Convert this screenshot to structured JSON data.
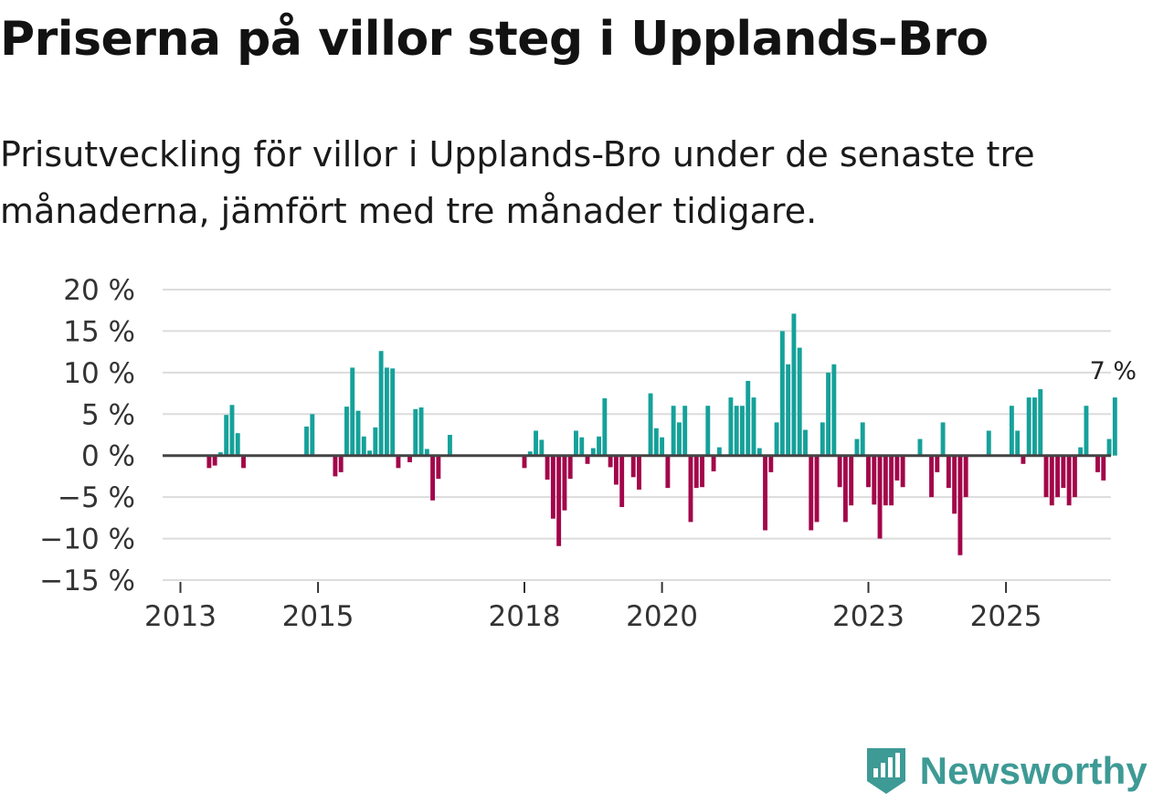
{
  "header": {
    "title": "Priserna på villor steg i Upplands-Bro",
    "subtitle": "Prisutveckling för villor i Upplands-Bro under de senaste tre månaderna, jämfört med tre månader tidigare."
  },
  "brand": {
    "name": "Newsworthy",
    "icon": "newsworthy-logo-icon",
    "color": "#3e9a95"
  },
  "colors": {
    "positive": "#15a19a",
    "negative": "#a3064a",
    "grid": "#dcdcdc",
    "zero": "#444444"
  },
  "chart_data": {
    "type": "bar",
    "title": "Priserna på villor steg i Upplands-Bro",
    "xlabel": "",
    "ylabel": "",
    "ylim": [
      -15,
      20
    ],
    "yticks": [
      20,
      15,
      10,
      5,
      0,
      -5,
      -10,
      -15
    ],
    "ytick_labels": [
      "20 %",
      "15 %",
      "10 %",
      "5 %",
      "0 %",
      "−5 %",
      "−10 %",
      "−15 %"
    ],
    "xticks": [
      2013,
      2015,
      2018,
      2020,
      2023,
      2025
    ],
    "xtick_labels": [
      "2013",
      "2015",
      "2018",
      "2020",
      "2023",
      "2025"
    ],
    "x_start": 2013.0,
    "step_months": 1,
    "values": [
      null,
      null,
      null,
      null,
      null,
      -1.5,
      -1.2,
      0.4,
      4.9,
      6.1,
      2.7,
      -1.5,
      null,
      null,
      null,
      null,
      null,
      null,
      null,
      null,
      null,
      null,
      3.5,
      5.0,
      null,
      null,
      null,
      -2.5,
      -2.0,
      5.9,
      10.6,
      5.4,
      2.3,
      0.6,
      3.4,
      12.6,
      10.6,
      10.5,
      -1.5,
      null,
      -0.8,
      5.6,
      5.8,
      0.8,
      -5.4,
      -2.8,
      null,
      2.5,
      null,
      null,
      null,
      null,
      null,
      null,
      null,
      null,
      null,
      null,
      null,
      null,
      -1.5,
      0.5,
      3.0,
      1.9,
      -2.9,
      -7.6,
      -10.9,
      -6.6,
      -2.8,
      3.0,
      2.2,
      -1.0,
      0.9,
      2.3,
      6.9,
      -1.4,
      -3.5,
      -6.2,
      null,
      -2.6,
      -4.1,
      null,
      7.5,
      3.3,
      2.2,
      -3.9,
      6.0,
      4.0,
      6.0,
      -8.0,
      -3.9,
      -3.8,
      6.0,
      -1.9,
      1.0,
      null,
      7.0,
      6.0,
      6.0,
      9.0,
      7.0,
      0.9,
      -9.0,
      -2.0,
      4.0,
      15.0,
      11.0,
      17.1,
      13.0,
      3.1,
      -9.0,
      -8.0,
      4.0,
      10.0,
      11.0,
      -3.8,
      -8.0,
      -6.0,
      2.0,
      4.0,
      -3.8,
      -5.9,
      -10.0,
      -6.0,
      -6.0,
      -3.0,
      -3.8,
      null,
      null,
      2.0,
      null,
      -5.0,
      -2.0,
      4.0,
      -3.9,
      -7.0,
      -12.0,
      -5.0,
      null,
      null,
      null,
      3.0,
      null,
      null,
      null,
      6.0,
      3.0,
      -1.0,
      7.0,
      7.0,
      8.0,
      -5.0,
      -6.0,
      -5.0,
      -3.9,
      -6.0,
      -5.0,
      1.0,
      6.0,
      null,
      -2.0,
      -3.0,
      2.0,
      7.0
    ],
    "annotations": [
      {
        "label": "7 %",
        "series_index": 163,
        "value": 7
      }
    ]
  }
}
